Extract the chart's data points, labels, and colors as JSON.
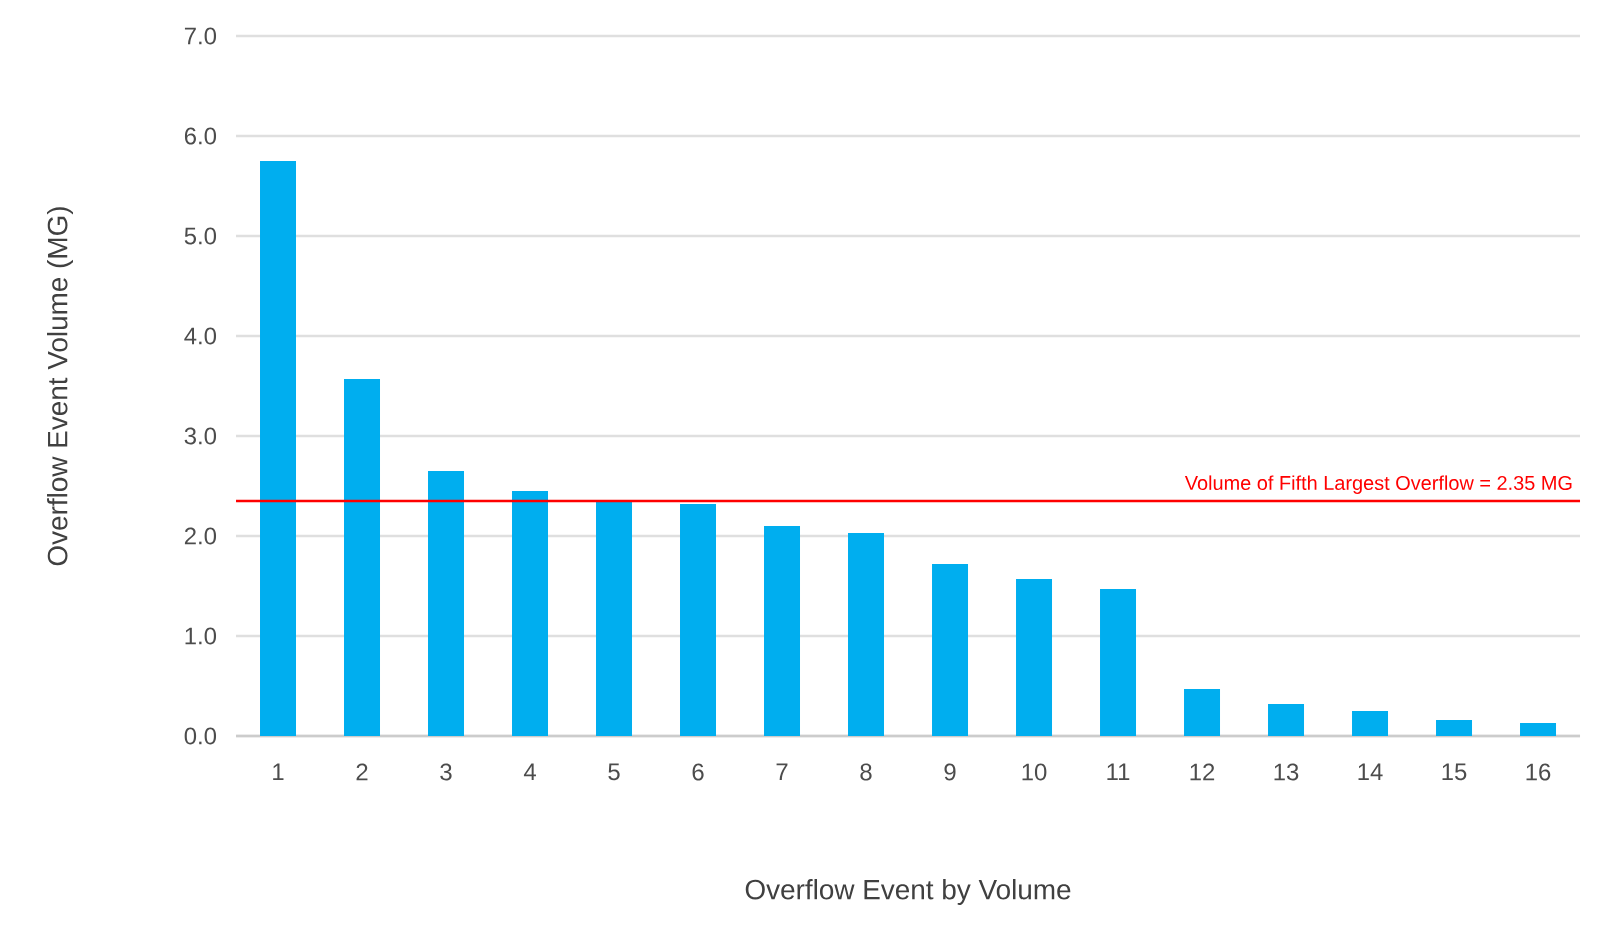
{
  "chart_data": {
    "type": "bar",
    "xlabel": "Overflow Event by Volume",
    "ylabel": "Overflow Event Volume (MG)",
    "categories": [
      "1",
      "2",
      "3",
      "4",
      "5",
      "6",
      "7",
      "8",
      "9",
      "10",
      "11",
      "12",
      "13",
      "14",
      "15",
      "16"
    ],
    "values": [
      5.75,
      3.57,
      2.65,
      2.45,
      2.35,
      2.32,
      2.1,
      2.03,
      1.72,
      1.57,
      1.47,
      0.47,
      0.32,
      0.25,
      0.16,
      0.13
    ],
    "color": "#00aeef",
    "ylim": [
      0,
      7
    ],
    "yticks": [
      {
        "value": 0,
        "label": "0.0"
      },
      {
        "value": 1,
        "label": "1.0"
      },
      {
        "value": 2,
        "label": "2.0"
      },
      {
        "value": 3,
        "label": "3.0"
      },
      {
        "value": 4,
        "label": "4.0"
      },
      {
        "value": 5,
        "label": "5.0"
      },
      {
        "value": 6,
        "label": "6.0"
      },
      {
        "value": 7,
        "label": "7.0"
      }
    ],
    "grid": "y",
    "ref_lines": [
      {
        "axis": "y",
        "value": 2.35,
        "label": "Volume of Fifth Largest Overflow = 2.35 MG",
        "color": "#ff0000"
      }
    ]
  }
}
